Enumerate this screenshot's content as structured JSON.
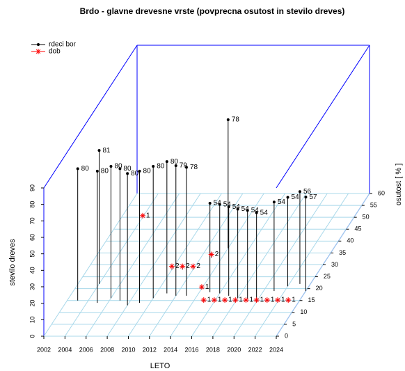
{
  "chart_data": {
    "type": "scatter3d",
    "title": "Brdo - glavne drevesne vrste (povprecna osutost in stevilo dreves)",
    "x_label": "LETO",
    "y_label": "osutost [ % ]",
    "z_label": "stevilo dreves",
    "xlim": [
      2002,
      2024
    ],
    "xticks": [
      2002,
      2004,
      2006,
      2008,
      2010,
      2012,
      2014,
      2016,
      2018,
      2020,
      2022,
      2024
    ],
    "ylim": [
      0,
      60
    ],
    "yticks": [
      0,
      5,
      10,
      15,
      20,
      25,
      30,
      35,
      40,
      45,
      50,
      55,
      60
    ],
    "zlim": [
      0,
      90
    ],
    "zticks": [
      0,
      10,
      20,
      30,
      40,
      50,
      60,
      70,
      80,
      90
    ],
    "grid": true,
    "legend": "top-left",
    "series": [
      {
        "name": "rdeci bor",
        "color": "#000000",
        "marker": "dot",
        "x": [
          2003,
          2004,
          2005,
          2006,
          2007,
          2008,
          2009,
          2010,
          2011,
          2012,
          2013,
          2014,
          2015,
          2016,
          2017,
          2018,
          2019,
          2020,
          2021,
          2022,
          2023,
          2024
        ],
        "y": [
          15,
          22,
          14,
          16,
          15,
          13,
          14,
          16,
          18,
          17,
          17,
          37,
          18.5,
          18,
          17,
          16,
          15.5,
          14.5,
          19,
          21,
          22,
          19
        ],
        "values": [
          80,
          81,
          80,
          80,
          80,
          80,
          80,
          80,
          80,
          79,
          78,
          78,
          54,
          54,
          54,
          54,
          54,
          54,
          54,
          54,
          56,
          57
        ]
      },
      {
        "name": "dob",
        "color": "#ff0000",
        "marker": "asterisk",
        "x": [
          2004,
          2010,
          2011,
          2012,
          2013,
          2014,
          2015,
          2016,
          2017,
          2018,
          2019,
          2020,
          2021,
          2022,
          2023
        ],
        "y": [
          50,
          28,
          28,
          28,
          33,
          20,
          14.5,
          14.5,
          14.5,
          14.5,
          14.5,
          14.5,
          14.5,
          14.5,
          14.5
        ],
        "values": [
          1,
          2,
          2,
          2,
          2,
          1,
          1,
          1,
          1,
          1,
          1,
          1,
          1,
          1,
          1
        ]
      }
    ]
  }
}
